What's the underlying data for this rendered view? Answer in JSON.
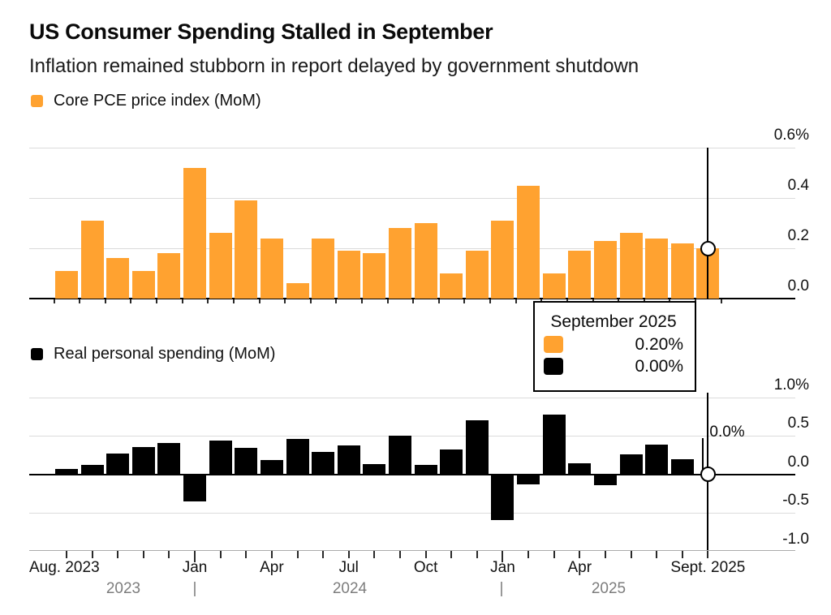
{
  "header": {
    "title": "US Consumer Spending Stalled in September",
    "subtitle": "Inflation remained stubborn in report delayed by government shutdown"
  },
  "legend": {
    "pce": "Core PCE price index (MoM)",
    "spending": "Real personal spending (MoM)"
  },
  "tooltip": {
    "title": "September 2025",
    "rows": [
      {
        "series": "Core PCE price index (MoM)",
        "color": "#FFA230",
        "value": "0.20%"
      },
      {
        "series": "Real personal spending (MoM)",
        "color": "#000000",
        "value": "0.00%"
      }
    ]
  },
  "annotation": {
    "label": "0.0%"
  },
  "colors": {
    "pce_orange": "#FFA230",
    "spending_black": "#000000",
    "gridline": "#dbdbdb",
    "axis": "#ababab",
    "year_gray": "#7d7d7d"
  },
  "chart_data": [
    {
      "type": "bar",
      "title": "Core PCE price index (MoM)",
      "unit": "%",
      "color": "#FFA230",
      "categories": [
        "Aug 2023",
        "Sep 2023",
        "Oct 2023",
        "Nov 2023",
        "Dec 2023",
        "Jan 2024",
        "Feb 2024",
        "Mar 2024",
        "Apr 2024",
        "May 2024",
        "Jun 2024",
        "Jul 2024",
        "Aug 2024",
        "Sep 2024",
        "Oct 2024",
        "Nov 2024",
        "Dec 2024",
        "Jan 2025",
        "Feb 2025",
        "Mar 2025",
        "Apr 2025",
        "May 2025",
        "Jun 2025",
        "Jul 2025",
        "Aug 2025",
        "Sep 2025"
      ],
      "values": [
        0.11,
        0.31,
        0.16,
        0.11,
        0.18,
        0.52,
        0.26,
        0.39,
        0.24,
        0.06,
        0.24,
        0.19,
        0.18,
        0.28,
        0.3,
        0.1,
        0.19,
        0.31,
        0.45,
        0.1,
        0.19,
        0.23,
        0.26,
        0.24,
        0.22,
        0.2
      ],
      "ylim": [
        0,
        0.6
      ],
      "yticks": [
        {
          "label": "0.6%",
          "value": 0.6
        },
        {
          "label": "0.4",
          "value": 0.4
        },
        {
          "label": "0.2",
          "value": 0.2
        },
        {
          "label": "0.0",
          "value": 0.0
        }
      ],
      "highlight": {
        "category": "Sep 2025",
        "index": 25,
        "value": 0.2
      }
    },
    {
      "type": "bar",
      "title": "Real personal spending (MoM)",
      "unit": "%",
      "color": "#000000",
      "categories": [
        "Aug 2023",
        "Sep 2023",
        "Oct 2023",
        "Nov 2023",
        "Dec 2023",
        "Jan 2024",
        "Feb 2024",
        "Mar 2024",
        "Apr 2024",
        "May 2024",
        "Jun 2024",
        "Jul 2024",
        "Aug 2024",
        "Sep 2024",
        "Oct 2024",
        "Nov 2024",
        "Dec 2024",
        "Jan 2025",
        "Feb 2025",
        "Mar 2025",
        "Apr 2025",
        "May 2025",
        "Jun 2025",
        "Jul 2025",
        "Aug 2025",
        "Sep 2025"
      ],
      "values": [
        0.07,
        0.12,
        0.27,
        0.35,
        0.41,
        -0.34,
        0.44,
        0.34,
        0.18,
        0.46,
        0.29,
        0.37,
        0.13,
        0.5,
        0.12,
        0.32,
        0.7,
        -0.58,
        -0.12,
        0.77,
        0.14,
        -0.13,
        0.26,
        0.38,
        0.2,
        0.0
      ],
      "ylim": [
        -1.0,
        1.0
      ],
      "yticks": [
        {
          "label": "1.0%",
          "value": 1.0
        },
        {
          "label": "0.5",
          "value": 0.5
        },
        {
          "label": "0.0",
          "value": 0.0
        },
        {
          "label": "-0.5",
          "value": -0.5
        },
        {
          "label": "-1.0",
          "value": -1.0
        }
      ],
      "highlight": {
        "category": "Sep 2025",
        "index": 25,
        "value": 0.0
      }
    }
  ],
  "x_axis": {
    "month_labels": [
      {
        "label": "Aug. 2023",
        "index": 0,
        "align": "left"
      },
      {
        "label": "Jan",
        "index": 5,
        "align": "center"
      },
      {
        "label": "Apr",
        "index": 8,
        "align": "center"
      },
      {
        "label": "Jul",
        "index": 11,
        "align": "center"
      },
      {
        "label": "Oct",
        "index": 14,
        "align": "center"
      },
      {
        "label": "Jan",
        "index": 17,
        "align": "center"
      },
      {
        "label": "Apr",
        "index": 20,
        "align": "center"
      },
      {
        "label": "Sept. 2025",
        "index": 25,
        "align": "center"
      }
    ],
    "year_labels": [
      {
        "label": "2023",
        "x": 152
      },
      {
        "label": "|",
        "x": 240
      },
      {
        "label": "2024",
        "x": 431
      },
      {
        "label": "|",
        "x": 618
      },
      {
        "label": "2025",
        "x": 750
      }
    ],
    "major_tick_indices": [
      5,
      17
    ]
  }
}
